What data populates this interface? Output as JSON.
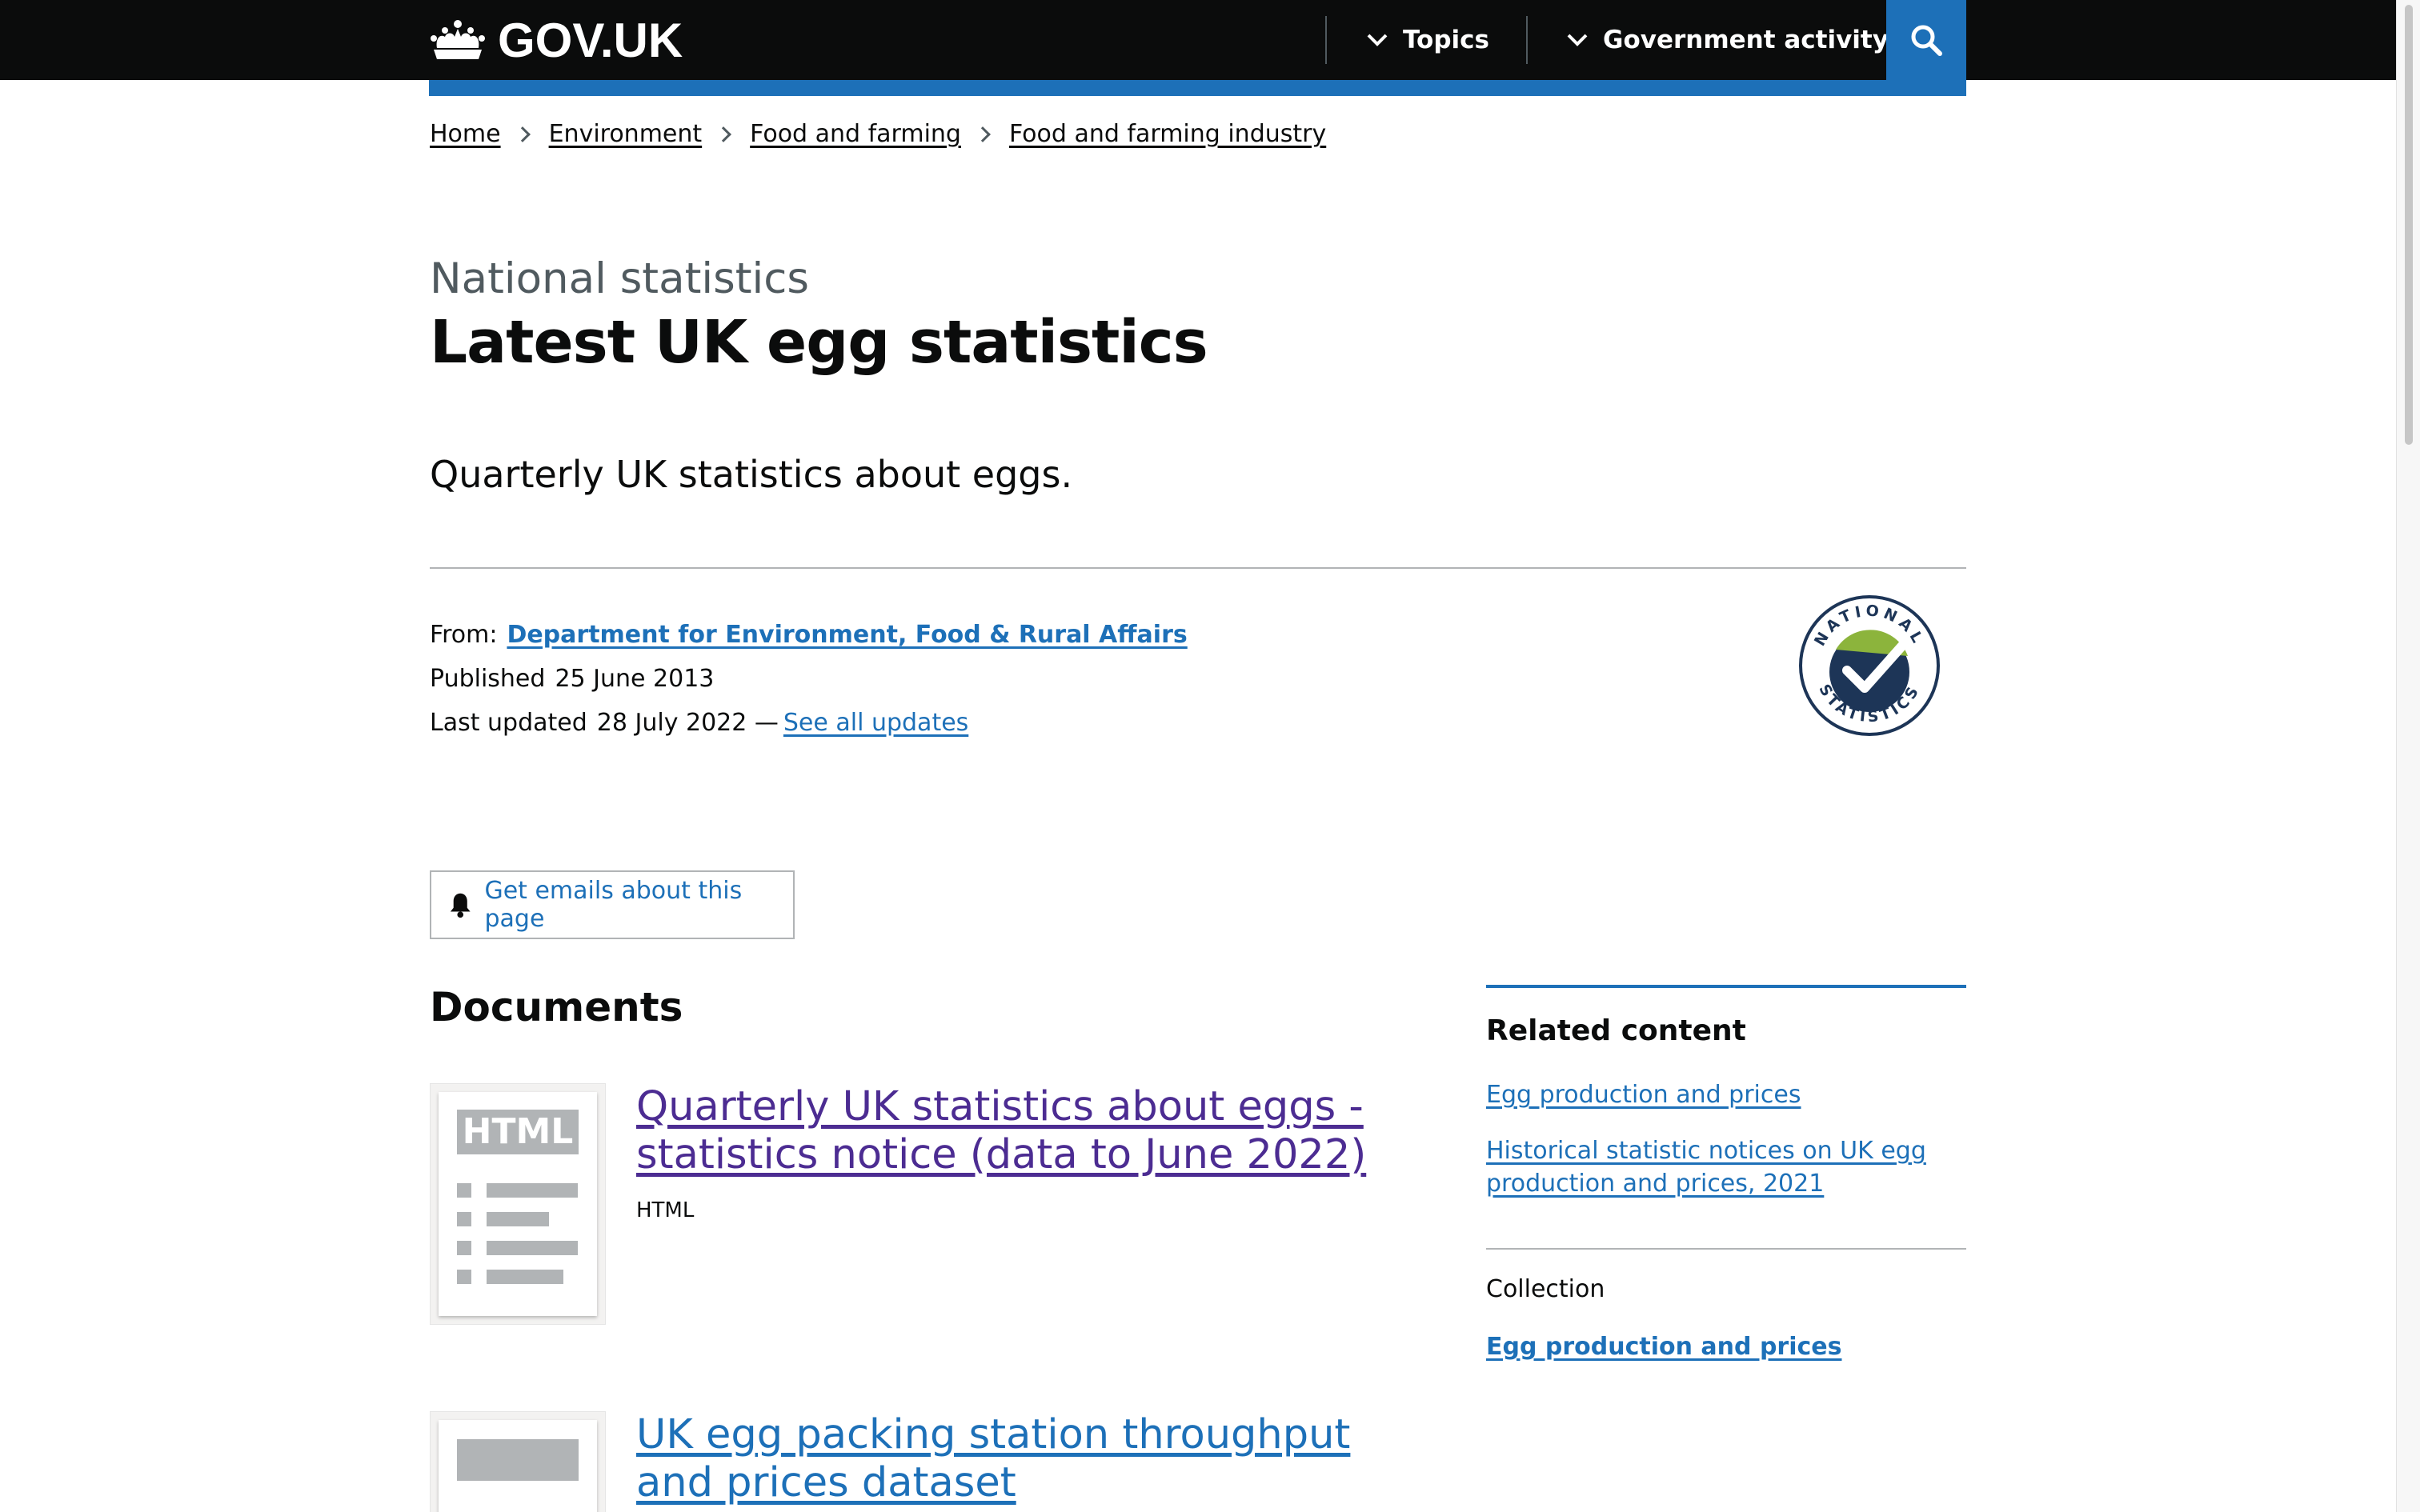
{
  "header": {
    "logo_text": "GOV.UK",
    "nav": [
      {
        "label": "Topics"
      },
      {
        "label": "Government activity"
      }
    ]
  },
  "breadcrumbs": [
    "Home",
    "Environment",
    "Food and farming",
    "Food and farming industry"
  ],
  "page": {
    "caption": "National statistics",
    "title": "Latest UK egg statistics",
    "lead": "Quarterly UK statistics about eggs."
  },
  "metadata": {
    "from_label": "From:",
    "from_value": "Department for Environment, Food & Rural Affairs",
    "published_label": "Published",
    "published_value": "25 June 2013",
    "updated_label": "Last updated",
    "updated_value": "28 July 2022 —",
    "see_all_updates": "See all updates",
    "badge_text": "NATIONAL STATISTICS"
  },
  "email_button": {
    "label": "Get emails about this page"
  },
  "documents": {
    "heading": "Documents",
    "items": [
      {
        "thumb_label": "HTML",
        "title": "Quarterly UK statistics about eggs - statistics notice (data to June 2022)",
        "type": "HTML"
      },
      {
        "title": "UK egg packing station throughput and prices dataset"
      }
    ]
  },
  "related": {
    "heading": "Related content",
    "links": [
      "Egg production and prices",
      "Historical statistic notices on UK egg production and prices, 2021"
    ],
    "collection_label": "Collection",
    "collection_link": "Egg production and prices"
  },
  "colors": {
    "header_bg": "#0b0c0c",
    "link": "#1d70b8",
    "visited_link": "#4c2c92",
    "ns_green": "#8cb43c",
    "ns_navy": "#1d3557"
  }
}
